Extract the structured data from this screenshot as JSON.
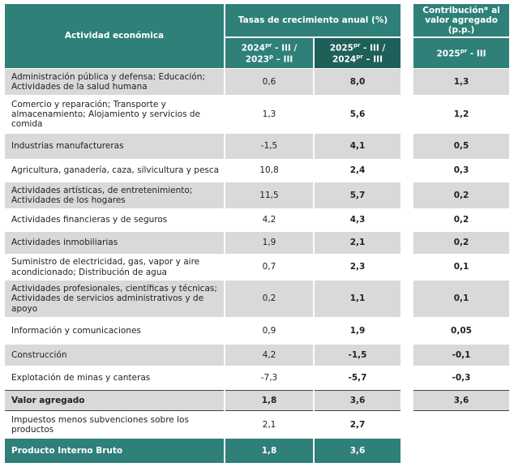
{
  "table": {
    "header": {
      "activity": "Actividad económica",
      "growth": "Tasas de crecimiento anual (%)",
      "col1": [
        "2024",
        "pr",
        " - III /",
        "2023",
        "p",
        " – III"
      ],
      "col2": [
        "2025",
        "pr",
        " - III /",
        "2024",
        "pr",
        " – III"
      ],
      "contribution": "Contribución* al valor agregado (p.p.)",
      "col3": [
        "2025",
        "pr",
        " - III"
      ]
    },
    "rows": [
      [
        "Administración pública y defensa; Educación; Actividades de la salud humana",
        "0,6",
        "8,0",
        "1,3"
      ],
      [
        "Comercio y reparación; Transporte y almacenamiento; Alojamiento y servicios de comida",
        "1,3",
        "5,6",
        "1,2"
      ],
      [
        "Industrias manufactureras",
        "-1,5",
        "4,1",
        "0,5"
      ],
      [
        "Agricultura, ganadería, caza, silvicultura y pesca",
        "10,8",
        "2,4",
        "0,3"
      ],
      [
        "Actividades artísticas, de entretenimiento; Actividades de los hogares",
        "11,5",
        "5,7",
        "0,2"
      ],
      [
        "Actividades financieras y de seguros",
        "4,2",
        "4,3",
        "0,2"
      ],
      [
        "Actividades inmobiliarias",
        "1,9",
        "2,1",
        "0,2"
      ],
      [
        "Suministro de electricidad, gas, vapor y aire acondicionado; Distribución de agua",
        "0,7",
        "2,3",
        "0,1"
      ],
      [
        "Actividades profesionales, científicas y técnicas; Actividades de servicios administrativos y de apoyo",
        "0,2",
        "1,1",
        "0,1"
      ],
      [
        "Información y comunicaciones",
        "0,9",
        "1,9",
        "0,05"
      ],
      [
        "Construcción",
        "4,2",
        "-1,5",
        "-0,1"
      ],
      [
        "Explotación de minas y canteras",
        "-7,3",
        "-5,7",
        "-0,3"
      ],
      [
        "Valor agregado",
        "1,8",
        "3,6",
        "3,6"
      ],
      [
        "Impuestos menos subvenciones sobre los productos",
        "2,1",
        "2,7"
      ],
      [
        "Producto Interno Bruto",
        "1,8",
        "3,6"
      ]
    ]
  }
}
